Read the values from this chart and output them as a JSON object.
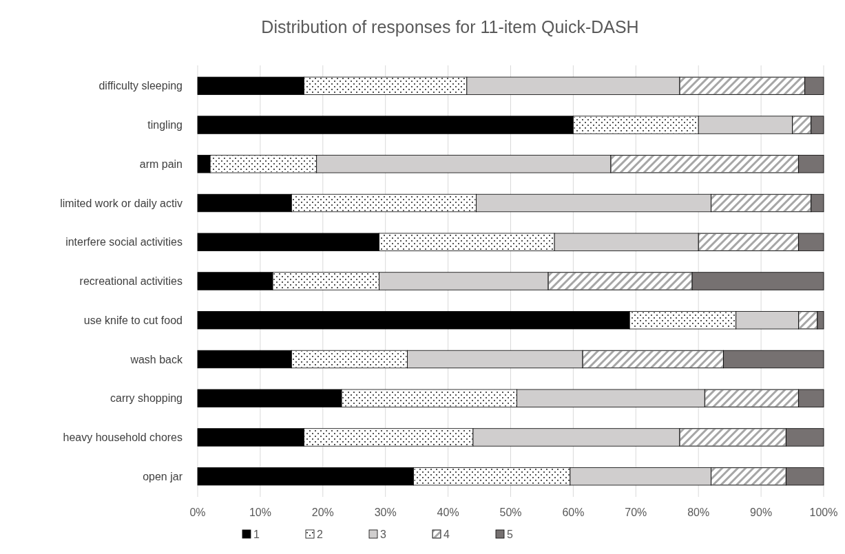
{
  "chart_data": {
    "type": "bar",
    "orientation": "horizontal",
    "stacked": true,
    "title": "Distribution of responses for 11-item Quick-DASH",
    "categories": [
      "difficulty sleeping",
      "tingling",
      "arm pain",
      "limited work or daily activ",
      "interfere social activities",
      "recreational activities",
      "use knife to cut food",
      "wash back",
      "carry shopping",
      "heavy household chores",
      "open jar"
    ],
    "series": [
      {
        "name": "1",
        "color": "#000000",
        "values": [
          17,
          60,
          2,
          15,
          29,
          12,
          69,
          15,
          23,
          17,
          34.5
        ]
      },
      {
        "name": "2",
        "color": "#ffffff",
        "values": [
          26,
          20,
          17,
          29.5,
          28,
          17,
          17,
          18.5,
          28,
          27,
          25
        ]
      },
      {
        "name": "3",
        "color": "#d0cece",
        "values": [
          34,
          15,
          47,
          37.5,
          23,
          27,
          10,
          28,
          30,
          33,
          22.5
        ]
      },
      {
        "name": "4",
        "color": "#a6a6a6",
        "values": [
          20,
          3,
          30,
          16,
          16,
          23,
          3,
          22.5,
          15,
          17,
          12
        ]
      },
      {
        "name": "5",
        "color": "#767171",
        "values": [
          3,
          2,
          4,
          2,
          4,
          21,
          1,
          16,
          4,
          6,
          6
        ]
      }
    ],
    "xlim": [
      0,
      100
    ],
    "xticks": [
      {
        "value": 0,
        "label": "0%"
      },
      {
        "value": 10,
        "label": "10%"
      },
      {
        "value": 20,
        "label": "20%"
      },
      {
        "value": 30,
        "label": "30%"
      },
      {
        "value": 40,
        "label": "40%"
      },
      {
        "value": 50,
        "label": "50%"
      },
      {
        "value": 60,
        "label": "60%"
      },
      {
        "value": 70,
        "label": "70%"
      },
      {
        "value": 80,
        "label": "80%"
      },
      {
        "value": 90,
        "label": "90%"
      },
      {
        "value": 100,
        "label": "100%"
      }
    ],
    "grid": "x",
    "legend": "bottom"
  }
}
